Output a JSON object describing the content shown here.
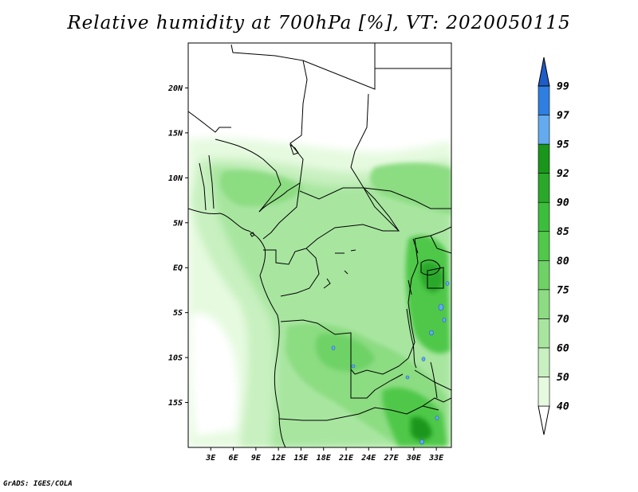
{
  "title": "Relative humidity at 700hPa [%], VT: 2020050115",
  "footer": "GrADS: IGES/COLA",
  "map": {
    "lon_range": [
      0,
      35
    ],
    "lat_range": [
      -20,
      25
    ],
    "lat_ticks": [
      {
        "value": 20,
        "label": "20N"
      },
      {
        "value": 15,
        "label": "15N"
      },
      {
        "value": 10,
        "label": "10N"
      },
      {
        "value": 5,
        "label": "5N"
      },
      {
        "value": 0,
        "label": "EQ"
      },
      {
        "value": -5,
        "label": "5S"
      },
      {
        "value": -10,
        "label": "10S"
      },
      {
        "value": -15,
        "label": "15S"
      }
    ],
    "lon_ticks": [
      {
        "value": 3,
        "label": "3E"
      },
      {
        "value": 6,
        "label": "6E"
      },
      {
        "value": 9,
        "label": "9E"
      },
      {
        "value": 12,
        "label": "12E"
      },
      {
        "value": 15,
        "label": "15E"
      },
      {
        "value": 18,
        "label": "18E"
      },
      {
        "value": 21,
        "label": "21E"
      },
      {
        "value": 24,
        "label": "24E"
      },
      {
        "value": 27,
        "label": "27E"
      },
      {
        "value": 30,
        "label": "30E"
      },
      {
        "value": 33,
        "label": "33E"
      }
    ]
  },
  "colorbar": {
    "levels": [
      "40",
      "50",
      "60",
      "70",
      "75",
      "80",
      "85",
      "90",
      "92",
      "95",
      "97",
      "99"
    ],
    "colors": [
      "#e6fae0",
      "#c8f0c0",
      "#a8e6a0",
      "#8cdc82",
      "#6ed266",
      "#50c84a",
      "#3cbe3c",
      "#2aa82a",
      "#1a961a",
      "#64aaee",
      "#2e7fe0",
      "#1f5cc8"
    ],
    "lower_color": "#ffffff",
    "upper_color": "#1f5cc8"
  }
}
